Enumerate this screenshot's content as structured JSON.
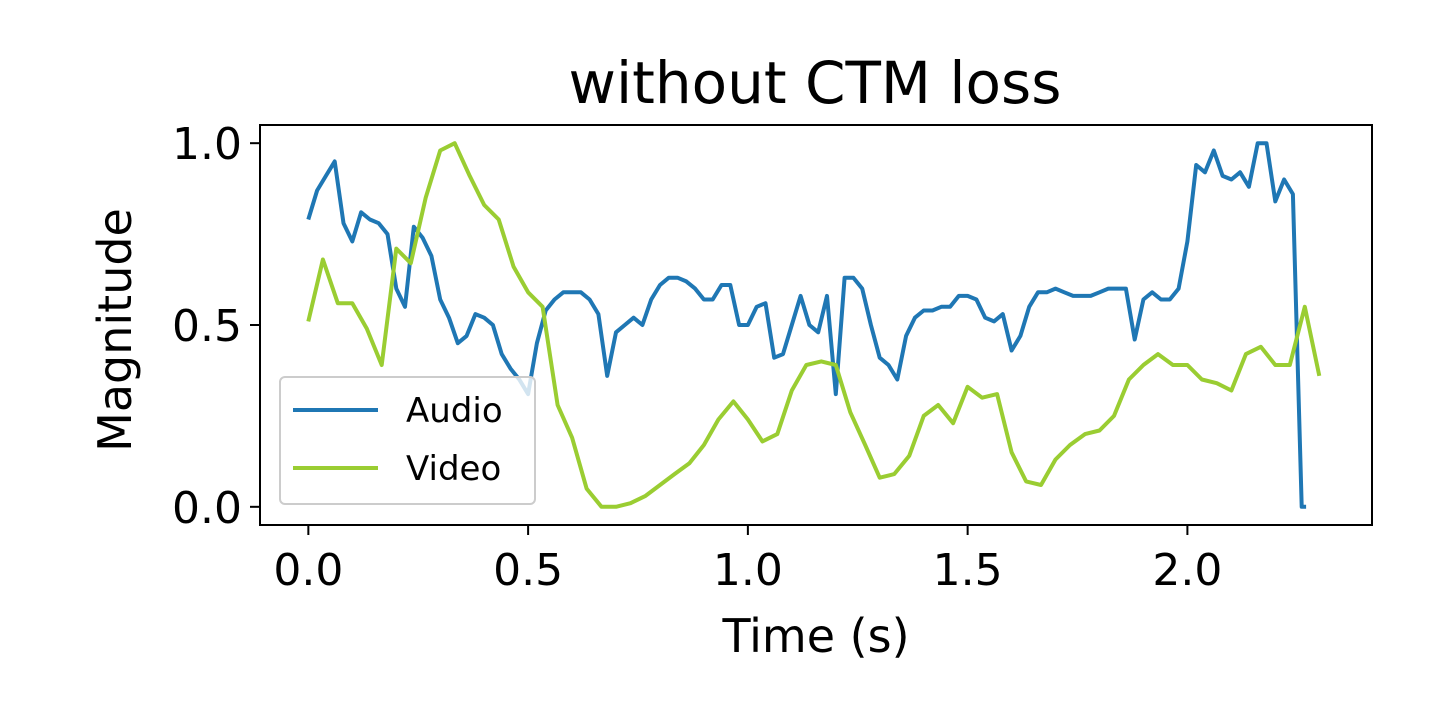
{
  "chart_data": {
    "type": "line",
    "title": "without CTM loss",
    "xlabel": "Time (s)",
    "ylabel": "Magnitude",
    "xlim": [
      -0.11,
      2.42
    ],
    "ylim": [
      -0.05,
      1.05
    ],
    "xticks": [
      0.0,
      0.5,
      1.0,
      1.5,
      2.0
    ],
    "xtick_labels": [
      "0.0",
      "0.5",
      "1.0",
      "1.5",
      "2.0"
    ],
    "yticks": [
      0.0,
      0.5,
      1.0
    ],
    "ytick_labels": [
      "0.0",
      "0.5",
      "1.0"
    ],
    "grid": false,
    "legend_position": "lower-left",
    "series": [
      {
        "name": "Audio",
        "color": "#1f77b4",
        "x": [
          0.0,
          0.02,
          0.04,
          0.06,
          0.08,
          0.1,
          0.12,
          0.14,
          0.16,
          0.18,
          0.2,
          0.22,
          0.24,
          0.26,
          0.28,
          0.3,
          0.32,
          0.34,
          0.36,
          0.38,
          0.4,
          0.42,
          0.44,
          0.46,
          0.48,
          0.5,
          0.52,
          0.54,
          0.56,
          0.58,
          0.6,
          0.62,
          0.64,
          0.66,
          0.68,
          0.7,
          0.72,
          0.74,
          0.76,
          0.78,
          0.8,
          0.82,
          0.84,
          0.86,
          0.88,
          0.9,
          0.92,
          0.94,
          0.96,
          0.98,
          1.0,
          1.02,
          1.04,
          1.06,
          1.08,
          1.1,
          1.12,
          1.14,
          1.16,
          1.18,
          1.2,
          1.22,
          1.24,
          1.26,
          1.28,
          1.3,
          1.32,
          1.34,
          1.36,
          1.38,
          1.4,
          1.42,
          1.44,
          1.46,
          1.48,
          1.5,
          1.52,
          1.54,
          1.56,
          1.58,
          1.6,
          1.62,
          1.64,
          1.66,
          1.68,
          1.7,
          1.72,
          1.74,
          1.76,
          1.78,
          1.8,
          1.82,
          1.84,
          1.86,
          1.88,
          1.9,
          1.92,
          1.94,
          1.96,
          1.98,
          2.0,
          2.02,
          2.04,
          2.06,
          2.08,
          2.1,
          2.12,
          2.14,
          2.16,
          2.18,
          2.2,
          2.22,
          2.24,
          2.26,
          2.27
        ],
        "values": [
          0.79,
          0.87,
          0.91,
          0.95,
          0.78,
          0.73,
          0.81,
          0.79,
          0.78,
          0.75,
          0.6,
          0.55,
          0.77,
          0.74,
          0.69,
          0.57,
          0.52,
          0.45,
          0.47,
          0.53,
          0.52,
          0.5,
          0.42,
          0.38,
          0.35,
          0.31,
          0.45,
          0.54,
          0.57,
          0.59,
          0.59,
          0.59,
          0.57,
          0.53,
          0.36,
          0.48,
          0.5,
          0.52,
          0.5,
          0.57,
          0.61,
          0.63,
          0.63,
          0.62,
          0.6,
          0.57,
          0.57,
          0.61,
          0.61,
          0.5,
          0.5,
          0.55,
          0.56,
          0.41,
          0.42,
          0.5,
          0.58,
          0.5,
          0.48,
          0.58,
          0.31,
          0.63,
          0.63,
          0.6,
          0.5,
          0.41,
          0.39,
          0.35,
          0.47,
          0.52,
          0.54,
          0.54,
          0.55,
          0.55,
          0.58,
          0.58,
          0.57,
          0.52,
          0.51,
          0.53,
          0.43,
          0.47,
          0.55,
          0.59,
          0.59,
          0.6,
          0.59,
          0.58,
          0.58,
          0.58,
          0.59,
          0.6,
          0.6,
          0.6,
          0.46,
          0.57,
          0.59,
          0.57,
          0.57,
          0.6,
          0.73,
          0.94,
          0.92,
          0.98,
          0.91,
          0.9,
          0.92,
          0.88,
          1.0,
          1.0,
          0.84,
          0.9,
          0.86,
          0.0,
          0.0
        ]
      },
      {
        "name": "Video",
        "color": "#9acd32",
        "x": [
          0.0,
          0.033,
          0.067,
          0.1,
          0.133,
          0.167,
          0.2,
          0.233,
          0.267,
          0.3,
          0.333,
          0.367,
          0.4,
          0.433,
          0.467,
          0.5,
          0.533,
          0.567,
          0.6,
          0.633,
          0.667,
          0.7,
          0.733,
          0.767,
          0.8,
          0.833,
          0.867,
          0.9,
          0.933,
          0.967,
          1.0,
          1.033,
          1.067,
          1.1,
          1.133,
          1.167,
          1.2,
          1.233,
          1.267,
          1.3,
          1.333,
          1.367,
          1.4,
          1.433,
          1.467,
          1.5,
          1.533,
          1.567,
          1.6,
          1.633,
          1.667,
          1.7,
          1.733,
          1.767,
          1.8,
          1.833,
          1.867,
          1.9,
          1.933,
          1.967,
          2.0,
          2.033,
          2.067,
          2.1,
          2.133,
          2.167,
          2.2,
          2.233,
          2.267,
          2.3
        ],
        "values": [
          0.51,
          0.68,
          0.56,
          0.56,
          0.49,
          0.39,
          0.71,
          0.67,
          0.85,
          0.98,
          1.0,
          0.91,
          0.83,
          0.79,
          0.66,
          0.59,
          0.55,
          0.28,
          0.19,
          0.05,
          0.0,
          0.0,
          0.01,
          0.03,
          0.06,
          0.09,
          0.12,
          0.17,
          0.24,
          0.29,
          0.24,
          0.18,
          0.2,
          0.32,
          0.39,
          0.4,
          0.39,
          0.26,
          0.17,
          0.08,
          0.09,
          0.14,
          0.25,
          0.28,
          0.23,
          0.33,
          0.3,
          0.31,
          0.15,
          0.07,
          0.06,
          0.13,
          0.17,
          0.2,
          0.21,
          0.25,
          0.35,
          0.39,
          0.42,
          0.39,
          0.39,
          0.35,
          0.34,
          0.32,
          0.42,
          0.44,
          0.39,
          0.39,
          0.55,
          0.36
        ]
      }
    ]
  }
}
